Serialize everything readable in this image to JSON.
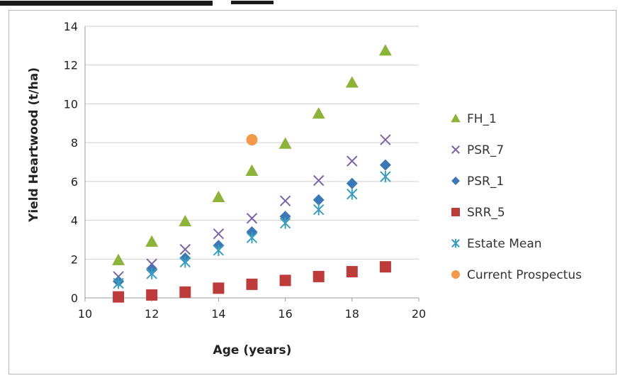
{
  "chart_data": {
    "type": "scatter",
    "title": "",
    "xlabel": "Age (years)",
    "ylabel": "Yield Heartwood (t/ha)",
    "xlim": [
      10,
      20
    ],
    "ylim": [
      0,
      14
    ],
    "x_ticks": [
      10,
      12,
      14,
      16,
      18,
      20
    ],
    "y_ticks": [
      0,
      2,
      4,
      6,
      8,
      10,
      12,
      14
    ],
    "grid": "horizontal",
    "legend_position": "right",
    "series": [
      {
        "name": "FH_1",
        "marker": "triangle",
        "color": "#8db33a",
        "points": [
          [
            11,
            1.95
          ],
          [
            12,
            2.9
          ],
          [
            13,
            3.95
          ],
          [
            14,
            5.2
          ],
          [
            15,
            6.55
          ],
          [
            16,
            7.95
          ],
          [
            17,
            9.5
          ],
          [
            18,
            11.1
          ],
          [
            19,
            12.75
          ]
        ]
      },
      {
        "name": "PSR_7",
        "marker": "x",
        "color": "#7d65a8",
        "points": [
          [
            11,
            1.1
          ],
          [
            12,
            1.75
          ],
          [
            13,
            2.5
          ],
          [
            14,
            3.3
          ],
          [
            15,
            4.1
          ],
          [
            16,
            5.0
          ],
          [
            17,
            6.05
          ],
          [
            18,
            7.05
          ],
          [
            19,
            8.15
          ]
        ]
      },
      {
        "name": "PSR_1",
        "marker": "diamond",
        "color": "#3c78b4",
        "points": [
          [
            11,
            0.85
          ],
          [
            12,
            1.45
          ],
          [
            13,
            2.05
          ],
          [
            14,
            2.7
          ],
          [
            15,
            3.4
          ],
          [
            16,
            4.2
          ],
          [
            17,
            5.05
          ],
          [
            18,
            5.9
          ],
          [
            19,
            6.85
          ]
        ]
      },
      {
        "name": "SRR_5",
        "marker": "square",
        "color": "#be3b3b",
        "points": [
          [
            11,
            0.05
          ],
          [
            12,
            0.15
          ],
          [
            13,
            0.3
          ],
          [
            14,
            0.5
          ],
          [
            15,
            0.7
          ],
          [
            16,
            0.9
          ],
          [
            17,
            1.1
          ],
          [
            18,
            1.35
          ],
          [
            19,
            1.6
          ]
        ]
      },
      {
        "name": "Estate Mean",
        "marker": "asterisk",
        "color": "#3a9fbf",
        "points": [
          [
            11,
            0.75
          ],
          [
            12,
            1.25
          ],
          [
            13,
            1.85
          ],
          [
            14,
            2.45
          ],
          [
            15,
            3.1
          ],
          [
            16,
            3.85
          ],
          [
            17,
            4.55
          ],
          [
            18,
            5.35
          ],
          [
            19,
            6.25
          ]
        ]
      },
      {
        "name": "Current Prospectus",
        "marker": "circle",
        "color": "#f39a4a",
        "points": [
          [
            15,
            8.15
          ]
        ]
      }
    ]
  }
}
